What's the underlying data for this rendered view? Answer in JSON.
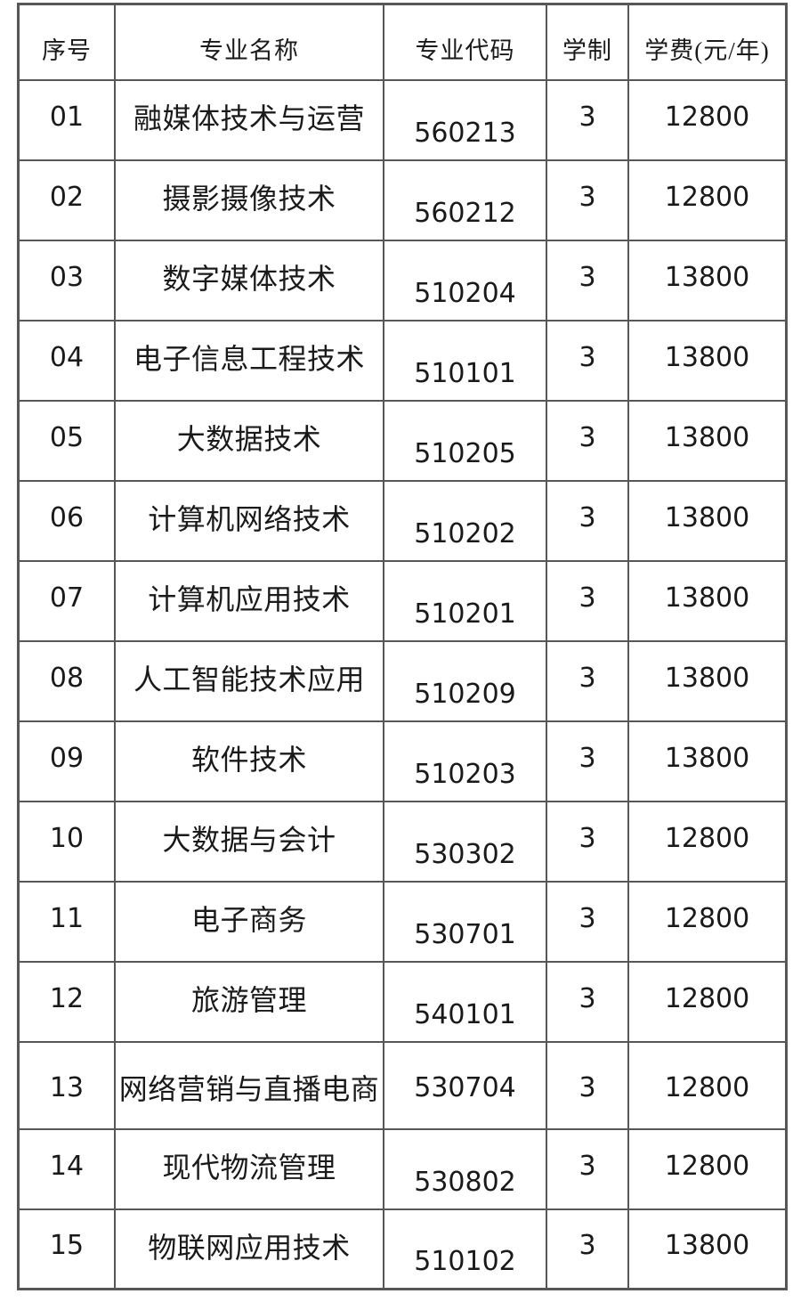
{
  "colors": {
    "border": "#575757",
    "text": "#1a1a1a",
    "background": "#ffffff"
  },
  "table": {
    "columns": [
      {
        "key": "seq",
        "label": "序号"
      },
      {
        "key": "name",
        "label": "专业名称"
      },
      {
        "key": "code",
        "label": "专业代码"
      },
      {
        "key": "duration",
        "label": "学制"
      },
      {
        "key": "tuition",
        "label": "学费(元/年)"
      }
    ],
    "rows": [
      {
        "seq": "01",
        "name": "融媒体技术与运营",
        "code": "560213",
        "duration": "3",
        "tuition": "12800",
        "code_inline": false
      },
      {
        "seq": "02",
        "name": "摄影摄像技术",
        "code": "560212",
        "duration": "3",
        "tuition": "12800",
        "code_inline": false
      },
      {
        "seq": "03",
        "name": "数字媒体技术",
        "code": "510204",
        "duration": "3",
        "tuition": "13800",
        "code_inline": false
      },
      {
        "seq": "04",
        "name": "电子信息工程技术",
        "code": "510101",
        "duration": "3",
        "tuition": "13800",
        "code_inline": false
      },
      {
        "seq": "05",
        "name": "大数据技术",
        "code": "510205",
        "duration": "3",
        "tuition": "13800",
        "code_inline": false
      },
      {
        "seq": "06",
        "name": "计算机网络技术",
        "code": "510202",
        "duration": "3",
        "tuition": "13800",
        "code_inline": false
      },
      {
        "seq": "07",
        "name": "计算机应用技术",
        "code": "510201",
        "duration": "3",
        "tuition": "13800",
        "code_inline": false
      },
      {
        "seq": "08",
        "name": "人工智能技术应用",
        "code": "510209",
        "duration": "3",
        "tuition": "13800",
        "code_inline": false
      },
      {
        "seq": "09",
        "name": "软件技术",
        "code": "510203",
        "duration": "3",
        "tuition": "13800",
        "code_inline": false
      },
      {
        "seq": "10",
        "name": "大数据与会计",
        "code": "530302",
        "duration": "3",
        "tuition": "12800",
        "code_inline": false
      },
      {
        "seq": "11",
        "name": "电子商务",
        "code": "530701",
        "duration": "3",
        "tuition": "12800",
        "code_inline": false
      },
      {
        "seq": "12",
        "name": "旅游管理",
        "code": "540101",
        "duration": "3",
        "tuition": "12800",
        "code_inline": false
      },
      {
        "seq": "13",
        "name": "网络营销与直播电商",
        "code": "530704",
        "duration": "3",
        "tuition": "12800",
        "code_inline": true
      },
      {
        "seq": "14",
        "name": "现代物流管理",
        "code": "530802",
        "duration": "3",
        "tuition": "12800",
        "code_inline": false
      },
      {
        "seq": "15",
        "name": "物联网应用技术",
        "code": "510102",
        "duration": "3",
        "tuition": "13800",
        "code_inline": false
      }
    ]
  }
}
